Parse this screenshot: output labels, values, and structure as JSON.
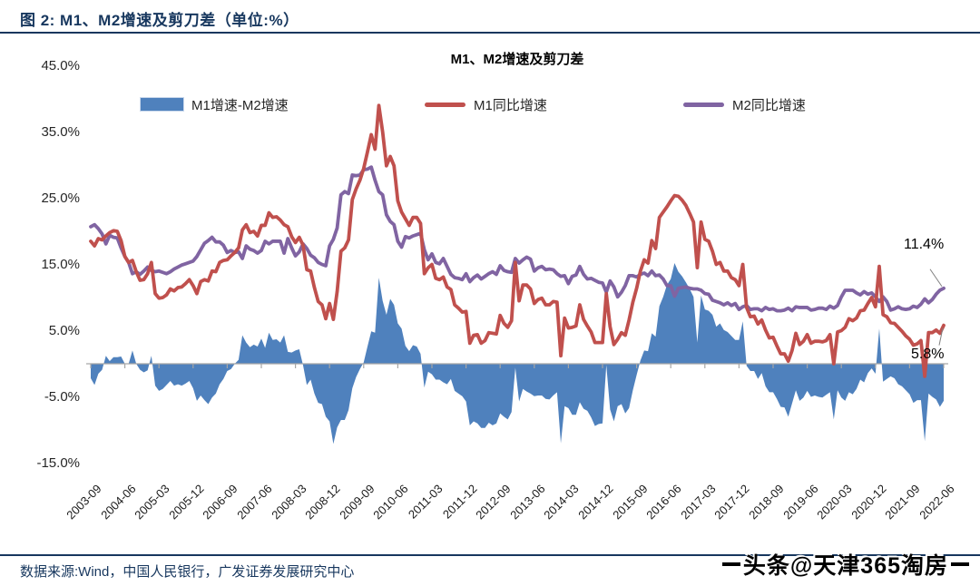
{
  "figure": {
    "caption": "图 2: M1、M2增速及剪刀差（单位:%）",
    "source": "数据来源:Wind，中国人民银行，广发证券发展研究中心",
    "watermark": "头条@天津365淘房"
  },
  "colors": {
    "bar_blue": "#4F81BD",
    "line_red": "#C0504D",
    "line_purple": "#8064A2",
    "heading_navy": "#17375E",
    "axis_gray": "#A6A6A6",
    "leader_gray": "#808080"
  },
  "chart_data": {
    "type": "bar",
    "subtype": "combo-bar-line",
    "title": "M1、M2增速及剪刀差",
    "y_unit": "%",
    "ylim": [
      -15,
      45
    ],
    "grid": false,
    "legend_position": "top",
    "x_monthly_start": "2003-09",
    "x_monthly_end": "2022-06",
    "x_tick_labels": [
      "2003-09",
      "2004-06",
      "2005-03",
      "2005-12",
      "2006-09",
      "2007-06",
      "2008-03",
      "2008-12",
      "2009-09",
      "2010-06",
      "2011-03",
      "2011-12",
      "2012-09",
      "2013-06",
      "2014-03",
      "2014-12",
      "2015-09",
      "2016-06",
      "2017-03",
      "2017-12",
      "2018-09",
      "2019-06",
      "2020-03",
      "2020-12",
      "2021-09",
      "2022-06"
    ],
    "y_ticks": [
      45,
      35,
      25,
      15,
      5,
      -5,
      -15
    ],
    "y_tick_labels": [
      "45.0%",
      "35.0%",
      "25.0%",
      "15.0%",
      "5.0%",
      "-5.0%",
      "-15.0%"
    ],
    "series": [
      {
        "name": "M1增速-M2增速",
        "type": "bar",
        "color": "#4F81BD",
        "derived": "M1同比增速 minus M2同比增速"
      },
      {
        "name": "M1同比增速",
        "type": "line",
        "color": "#C0504D",
        "values": [
          18.5,
          17.8,
          18.9,
          18.7,
          19.3,
          19.8,
          20.1,
          20.0,
          18.6,
          16.2,
          15.3,
          15.6,
          13.9,
          12.6,
          12.7,
          13.6,
          15.3,
          10.6,
          9.9,
          10.0,
          10.4,
          11.3,
          11.0,
          11.5,
          11.6,
          12.1,
          12.7,
          11.8,
          10.6,
          12.4,
          12.7,
          12.5,
          14.0,
          13.9,
          15.3,
          15.6,
          15.7,
          16.3,
          16.8,
          17.5,
          20.2,
          21.0,
          19.8,
          20.0,
          19.3,
          20.9,
          20.9,
          22.8,
          22.1,
          22.2,
          21.7,
          21.0,
          20.7,
          19.2,
          18.3,
          19.1,
          17.9,
          14.2,
          14.0,
          11.5,
          9.4,
          8.9,
          6.8,
          9.1,
          6.7,
          10.9,
          17.0,
          17.5,
          18.7,
          24.8,
          26.4,
          27.7,
          29.5,
          32.0,
          34.6,
          32.4,
          39.0,
          35.0,
          29.9,
          31.3,
          29.9,
          24.6,
          22.9,
          21.9,
          20.9,
          22.1,
          22.1,
          21.2,
          13.6,
          14.5,
          15.0,
          12.9,
          12.7,
          13.1,
          11.6,
          11.2,
          8.9,
          8.4,
          7.8,
          7.9,
          3.1,
          4.3,
          4.4,
          3.1,
          3.5,
          4.7,
          4.6,
          4.5,
          7.3,
          6.1,
          5.5,
          6.5,
          15.3,
          9.5,
          11.9,
          11.9,
          11.3,
          9.1,
          9.7,
          9.9,
          8.9,
          8.9,
          9.4,
          9.3,
          1.2,
          6.9,
          5.4,
          5.5,
          5.7,
          8.9,
          6.7,
          5.7,
          4.8,
          3.2,
          3.2,
          3.2,
          10.6,
          5.6,
          2.9,
          3.7,
          4.7,
          4.3,
          6.6,
          9.3,
          11.4,
          14.0,
          15.7,
          15.2,
          18.6,
          17.4,
          22.1,
          22.9,
          23.7,
          24.6,
          25.4,
          25.3,
          24.7,
          23.9,
          22.7,
          21.4,
          14.5,
          21.4,
          18.8,
          18.5,
          17.0,
          15.0,
          15.3,
          14.0,
          14.0,
          13.0,
          12.7,
          11.8,
          15.0,
          8.5,
          7.1,
          7.2,
          6.0,
          6.6,
          5.1,
          3.9,
          4.0,
          2.7,
          1.5,
          1.5,
          0.4,
          2.0,
          4.6,
          2.9,
          3.4,
          4.4,
          3.1,
          3.4,
          3.4,
          3.3,
          3.5,
          4.4,
          0.0,
          4.8,
          5.0,
          5.5,
          6.8,
          6.5,
          6.9,
          8.0,
          8.1,
          9.1,
          10.0,
          8.6,
          14.7,
          7.4,
          7.1,
          6.2,
          6.1,
          5.5,
          4.9,
          4.2,
          3.7,
          2.8,
          3.0,
          3.5,
          -1.9,
          4.7,
          4.7,
          5.1,
          4.6,
          5.8
        ]
      },
      {
        "name": "M2同比增速",
        "type": "line",
        "color": "#8064A2",
        "values": [
          20.7,
          21.0,
          20.4,
          19.6,
          18.1,
          19.4,
          19.1,
          19.0,
          17.5,
          16.2,
          15.3,
          13.6,
          13.9,
          13.5,
          14.0,
          14.6,
          14.1,
          13.9,
          14.0,
          13.8,
          13.6,
          13.9,
          14.3,
          14.6,
          14.9,
          15.1,
          15.3,
          15.5,
          16.2,
          17.2,
          18.2,
          18.6,
          19.1,
          18.4,
          18.4,
          17.9,
          16.8,
          17.1,
          16.8,
          16.9,
          15.9,
          17.8,
          17.3,
          17.1,
          16.7,
          17.1,
          18.5,
          18.1,
          18.5,
          18.5,
          18.5,
          16.7,
          18.9,
          17.5,
          16.3,
          16.9,
          18.1,
          17.4,
          16.4,
          16.0,
          15.3,
          15.0,
          14.8,
          17.8,
          18.8,
          20.5,
          25.5,
          26.0,
          25.7,
          28.5,
          28.4,
          28.5,
          29.3,
          29.4,
          29.7,
          27.7,
          26.0,
          25.5,
          22.5,
          21.5,
          21.0,
          18.5,
          17.6,
          19.2,
          19.0,
          19.3,
          19.5,
          19.7,
          17.2,
          15.7,
          16.6,
          15.3,
          15.1,
          15.9,
          14.7,
          13.5,
          13.0,
          12.9,
          12.7,
          13.6,
          12.4,
          13.0,
          13.4,
          12.8,
          13.2,
          13.6,
          13.9,
          13.5,
          14.8,
          14.1,
          13.9,
          13.8,
          15.9,
          15.2,
          15.7,
          16.1,
          15.8,
          14.0,
          14.5,
          14.7,
          14.2,
          14.3,
          14.2,
          13.6,
          13.2,
          13.3,
          12.1,
          13.2,
          13.4,
          14.7,
          13.5,
          12.8,
          12.9,
          12.6,
          12.3,
          12.2,
          10.8,
          12.5,
          11.6,
          10.1,
          10.8,
          11.8,
          13.3,
          13.3,
          13.1,
          13.5,
          13.7,
          13.3,
          14.0,
          13.3,
          13.4,
          12.8,
          11.8,
          11.8,
          10.2,
          11.4,
          11.5,
          11.6,
          11.4,
          11.3,
          11.3,
          11.1,
          10.6,
          10.5,
          9.6,
          9.4,
          9.2,
          8.9,
          9.2,
          8.8,
          9.1,
          8.2,
          8.6,
          8.8,
          8.2,
          8.3,
          8.3,
          8.0,
          8.5,
          8.2,
          8.3,
          8.0,
          8.0,
          8.1,
          8.4,
          8.0,
          8.6,
          8.5,
          8.5,
          8.5,
          8.1,
          8.2,
          8.4,
          8.4,
          8.2,
          8.7,
          8.4,
          8.8,
          10.1,
          11.1,
          11.1,
          11.1,
          10.7,
          10.4,
          10.9,
          10.5,
          10.7,
          10.1,
          9.4,
          10.1,
          9.4,
          8.1,
          8.3,
          8.6,
          8.3,
          8.2,
          8.3,
          8.7,
          8.5,
          9.0,
          9.8,
          9.2,
          9.7,
          10.5,
          11.1,
          11.4
        ]
      }
    ],
    "annotations": [
      {
        "text": "11.4%",
        "series": "M2同比增速",
        "at": "2022-06",
        "value": 11.4
      },
      {
        "text": "5.8%",
        "series": "M1同比增速",
        "at": "2022-06",
        "value": 5.8
      }
    ]
  }
}
